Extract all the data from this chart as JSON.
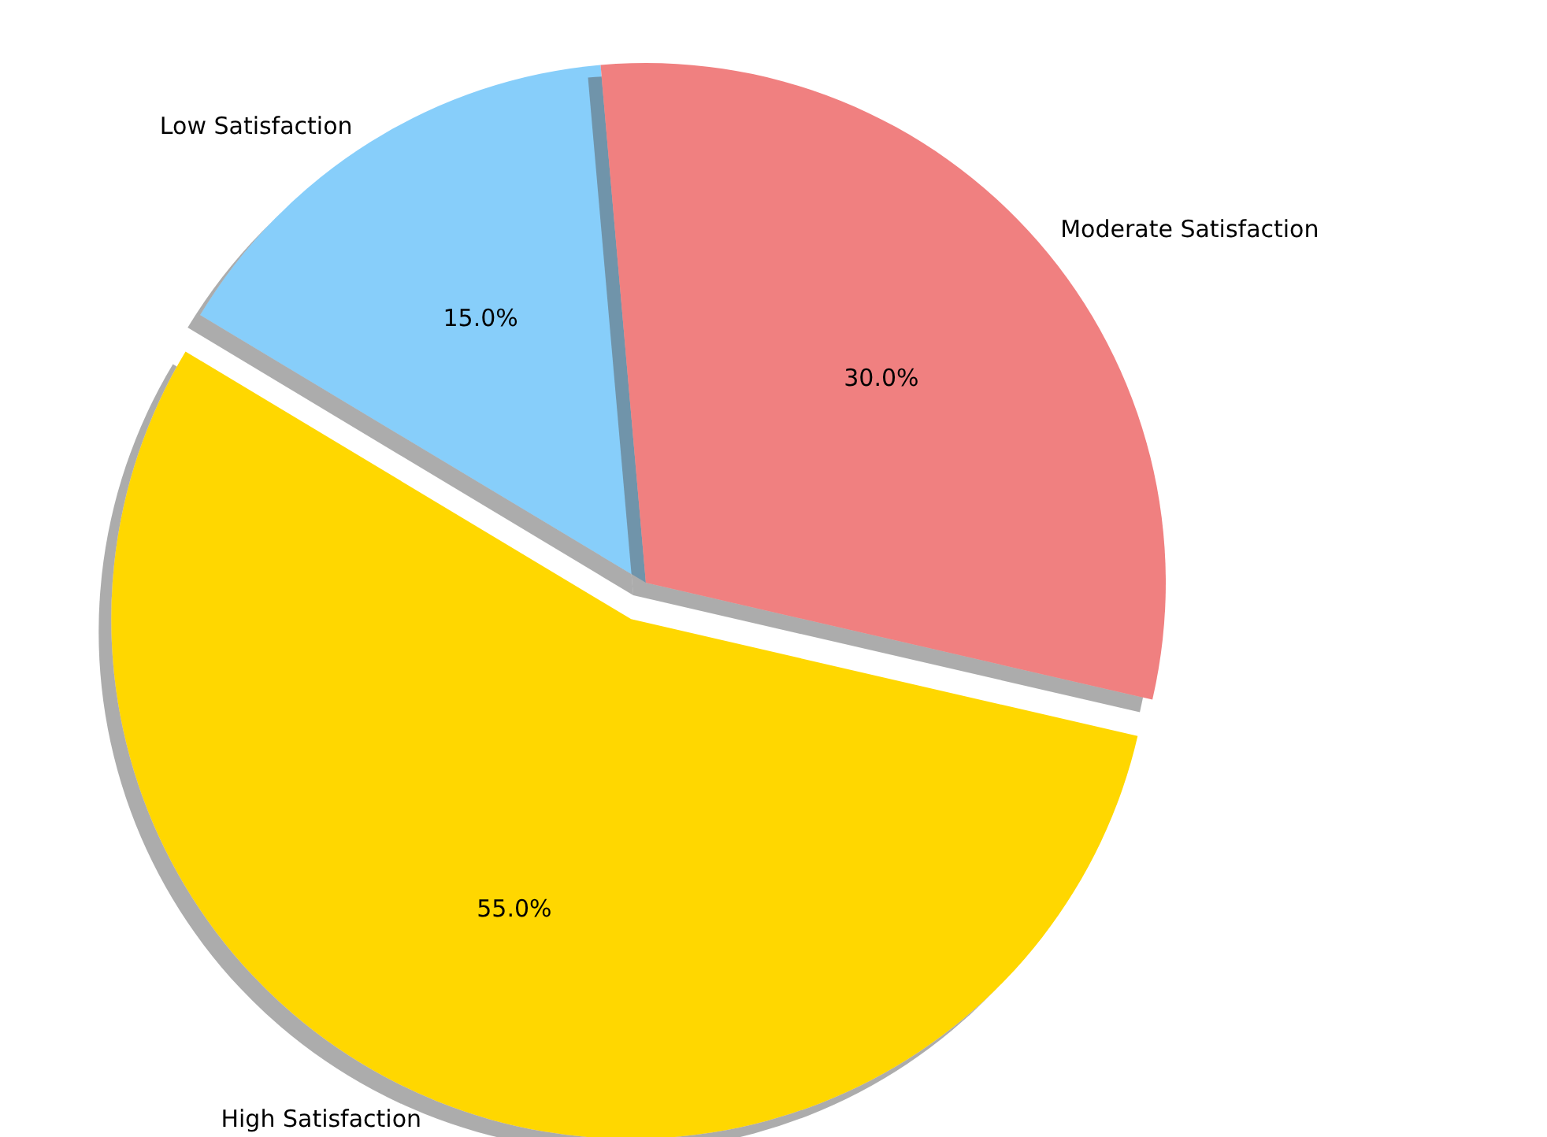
{
  "chart_data": {
    "type": "pie",
    "categories": [
      "Low Satisfaction",
      "High Satisfaction",
      "Moderate Satisfaction"
    ],
    "values": [
      15,
      55,
      30
    ],
    "colors": [
      "#87cefa",
      "#ffd700",
      "#f08080"
    ],
    "value_labels": [
      "15.0%",
      "55.0%",
      "30.0%"
    ]
  }
}
